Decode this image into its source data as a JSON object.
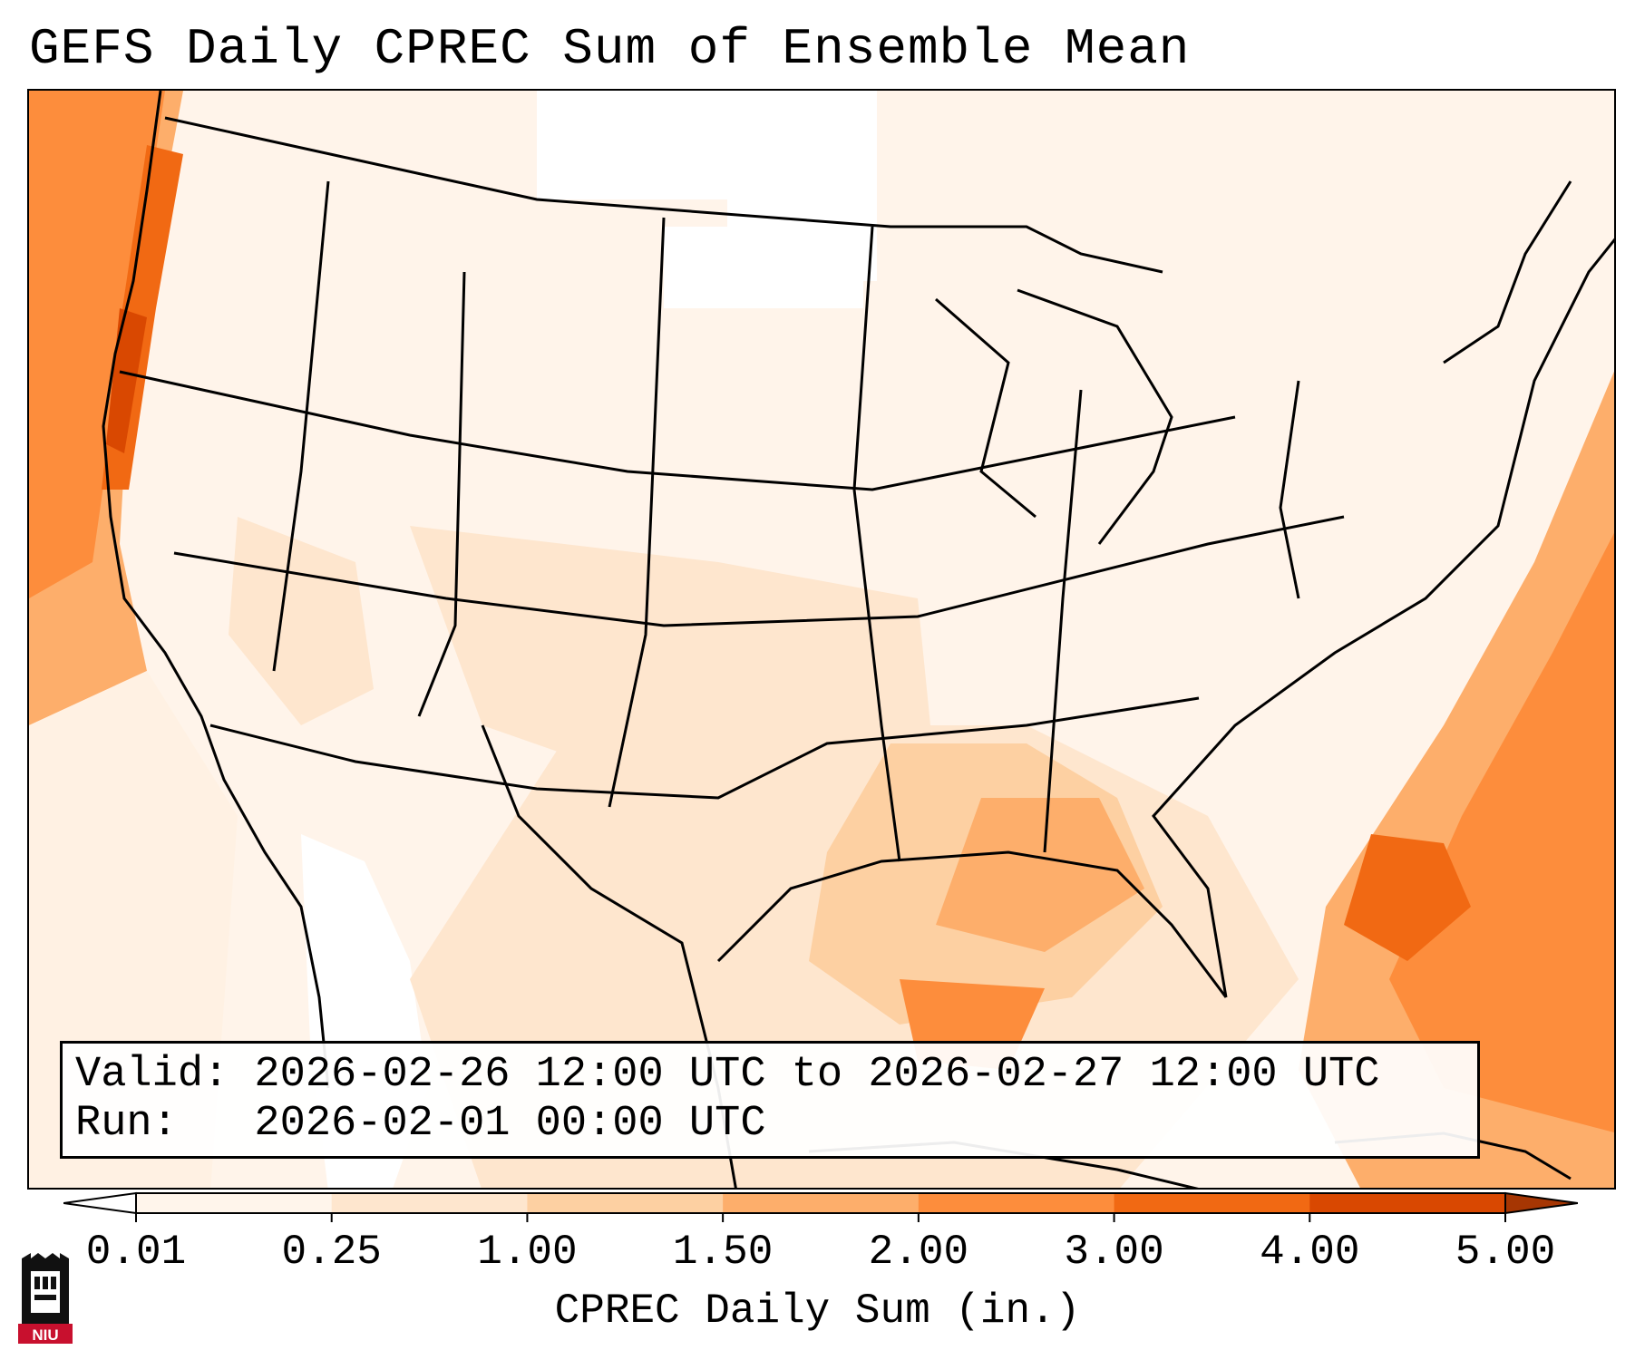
{
  "title": "GEFS Daily CPREC Sum of Ensemble Mean",
  "info": {
    "valid": "Valid: 2026-02-26 12:00 UTC to 2026-02-27 12:00 UTC",
    "run": "Run:   2026-02-01 00:00 UTC"
  },
  "colorbar": {
    "label": "CPREC Daily Sum (in.)",
    "ticks": [
      "0.01",
      "0.25",
      "1.00",
      "1.50",
      "2.00",
      "3.00",
      "4.00",
      "5.00"
    ],
    "colors": [
      "#fff5eb",
      "#fee6ce",
      "#fdd0a2",
      "#fdae6b",
      "#fd8d3c",
      "#f16913",
      "#d94801",
      "#a63603"
    ],
    "under_color": "#ffffff",
    "over_color": "#a63603"
  },
  "logo": {
    "text": "NIU"
  }
}
